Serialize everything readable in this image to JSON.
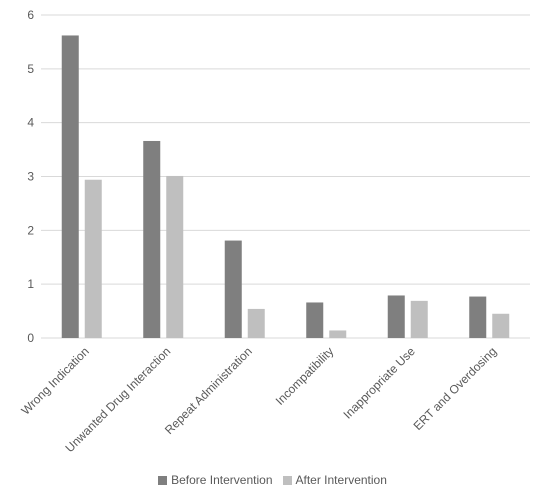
{
  "chart_data": {
    "type": "bar",
    "title": "",
    "xlabel": "",
    "ylabel": "",
    "categories": [
      "Wrong Indication",
      "Unwanted Drug Interaction",
      "Repeat Administration",
      "Incompatibility",
      "Inappropriate Use",
      "ERT and Overdosing"
    ],
    "series": [
      {
        "name": "Before Intervention",
        "color": "#7f7f7f",
        "values": [
          5.62,
          3.66,
          1.81,
          0.66,
          0.79,
          0.77
        ]
      },
      {
        "name": "After Intervention",
        "color": "#bfbfbf",
        "values": [
          2.94,
          3.01,
          0.54,
          0.14,
          0.69,
          0.45
        ]
      }
    ],
    "ylim": [
      0,
      6
    ],
    "yticks": [
      "0",
      "1",
      "2",
      "3",
      "4",
      "5",
      "6"
    ],
    "grid": true,
    "legend": "bottom"
  }
}
